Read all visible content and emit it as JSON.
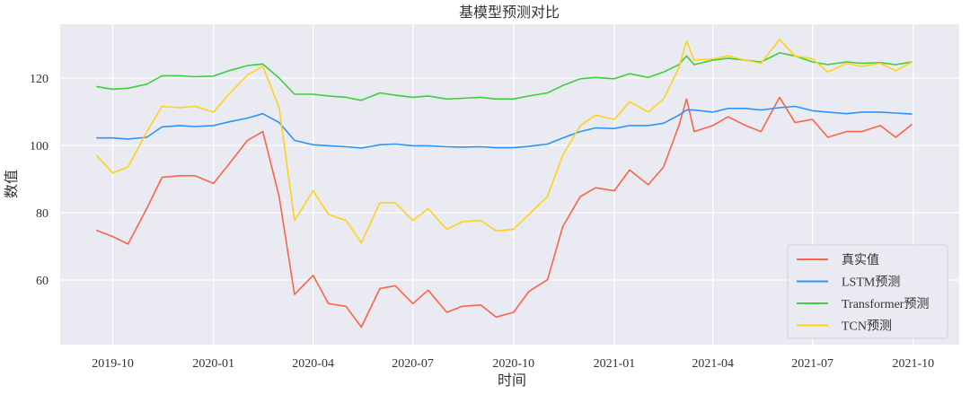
{
  "chart_data": {
    "type": "line",
    "title": "基模型预测对比",
    "xlabel": "时间",
    "ylabel": "数值",
    "xlim": [
      "2019-08-14",
      "2021-11-12"
    ],
    "ylim": [
      40.8,
      136
    ],
    "grid": true,
    "legend_position": "bottom-right",
    "x_ticks": [
      "2019-10",
      "2020-01",
      "2020-04",
      "2020-07",
      "2020-10",
      "2021-01",
      "2021-04",
      "2021-07",
      "2021-10"
    ],
    "y_ticks": [
      60,
      80,
      100,
      120
    ],
    "x": [
      "2019-09-16",
      "2019-10-01",
      "2019-10-15",
      "2019-11-01",
      "2019-11-15",
      "2019-12-01",
      "2019-12-15",
      "2020-01-01",
      "2020-01-15",
      "2020-02-01",
      "2020-02-15",
      "2020-03-01",
      "2020-03-15",
      "2020-04-01",
      "2020-04-15",
      "2020-05-01",
      "2020-05-15",
      "2020-06-01",
      "2020-06-15",
      "2020-07-01",
      "2020-07-15",
      "2020-08-01",
      "2020-08-15",
      "2020-09-01",
      "2020-09-15",
      "2020-10-01",
      "2020-10-15",
      "2020-11-01",
      "2020-11-15",
      "2020-12-01",
      "2020-12-15",
      "2021-01-01",
      "2021-01-15",
      "2021-02-01",
      "2021-02-15",
      "2021-03-01",
      "2021-03-08",
      "2021-03-15",
      "2021-04-01",
      "2021-04-15",
      "2021-05-01",
      "2021-05-15",
      "2021-06-01",
      "2021-06-15",
      "2021-07-01",
      "2021-07-15",
      "2021-08-01",
      "2021-08-15",
      "2021-09-01",
      "2021-09-15",
      "2021-09-30"
    ],
    "series": [
      {
        "name": "真实值",
        "color": "#fa6448",
        "values": [
          74.8,
          72.9,
          70.7,
          81.2,
          90.5,
          91,
          91,
          88.7,
          94.4,
          101.5,
          104.1,
          84.8,
          55.7,
          61.4,
          53,
          52.2,
          46,
          57.5,
          58.3,
          53,
          57,
          50.4,
          52.2,
          52.6,
          49,
          50.4,
          56.6,
          60.1,
          75.9,
          84.8,
          87.4,
          86.5,
          92.7,
          88.3,
          93.6,
          105.9,
          113.8,
          104.1,
          105.9,
          108.5,
          105.9,
          104.1,
          114.3,
          106.8,
          107.7,
          102.4,
          104.1,
          104.1,
          105.9,
          102.4,
          106.3
        ]
      },
      {
        "name": "LSTM预测",
        "color": "#2b93fb",
        "values": [
          102.2,
          102.2,
          101.9,
          102.4,
          105.5,
          105.9,
          105.6,
          105.9,
          107,
          108.1,
          109.4,
          106.8,
          101.5,
          100.2,
          99.9,
          99.6,
          99.2,
          100.2,
          100.4,
          99.9,
          99.9,
          99.6,
          99.5,
          99.6,
          99.3,
          99.3,
          99.7,
          100.4,
          102.2,
          104.1,
          105.2,
          105,
          105.9,
          105.9,
          106.6,
          109,
          110.5,
          110.5,
          109.9,
          111,
          111,
          110.5,
          111.2,
          111.6,
          110.3,
          109.9,
          109.4,
          109.9,
          109.9,
          109.6,
          109.3
        ]
      },
      {
        "name": "Transformer预测",
        "color": "#3ccf3c",
        "values": [
          117.5,
          116.7,
          117,
          118.2,
          120.7,
          120.7,
          120.4,
          120.6,
          122.2,
          123.7,
          124.2,
          120,
          115.2,
          115.2,
          114.7,
          114.3,
          113.4,
          115.6,
          114.9,
          114.3,
          114.7,
          113.8,
          114,
          114.3,
          113.8,
          113.8,
          114.7,
          115.6,
          117.8,
          119.8,
          120.2,
          119.8,
          121.3,
          120.2,
          121.8,
          124,
          126.6,
          124,
          125.3,
          125.9,
          125.3,
          124.8,
          127.5,
          126.6,
          124.8,
          124,
          124.8,
          124.4,
          124.6,
          124,
          124.8
        ]
      },
      {
        "name": "TCN预测",
        "color": "#ffd21a",
        "values": [
          97.1,
          91.8,
          93.6,
          104,
          111.6,
          111.2,
          111.6,
          109.9,
          115.2,
          120.9,
          123.5,
          111.2,
          77.7,
          86.5,
          79.5,
          77.7,
          71.1,
          83,
          83,
          77.7,
          81.2,
          75.1,
          77.3,
          77.7,
          74.6,
          75.1,
          79.5,
          84.8,
          97.1,
          105.9,
          109,
          107.7,
          113,
          109.9,
          113.8,
          123.1,
          131,
          125.3,
          125.7,
          126.6,
          125.3,
          124.4,
          131.5,
          126.6,
          125.7,
          121.8,
          124.4,
          123.5,
          124.4,
          122.2,
          124.8
        ]
      }
    ]
  }
}
